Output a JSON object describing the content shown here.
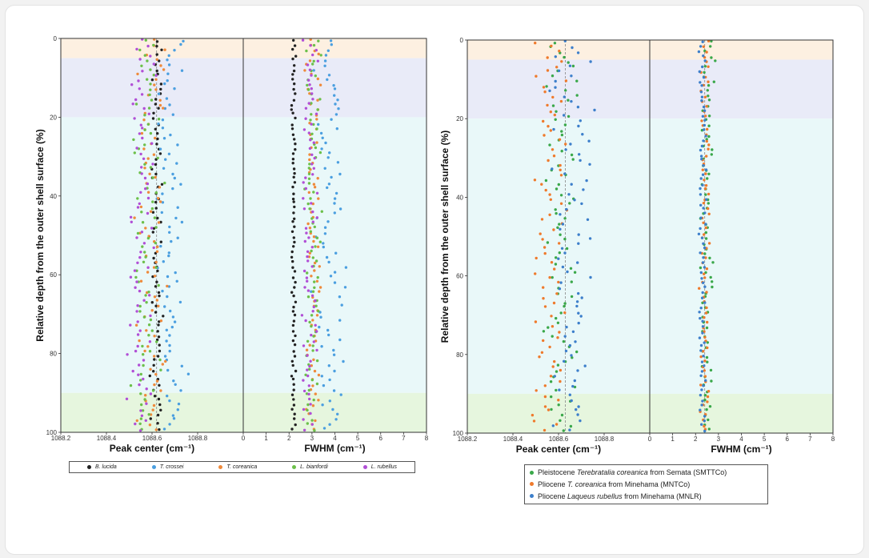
{
  "chart_data": [
    {
      "type": "scatter",
      "panel": "left",
      "ylabel": "Relative depth from the outer shell surface (%)",
      "ylim": [
        0,
        100
      ],
      "ytick_labels": [
        "0",
        "20",
        "40",
        "60",
        "80",
        "100"
      ],
      "depth_zones": [
        {
          "from": 0,
          "to": 5,
          "color": "#fdf0e1"
        },
        {
          "from": 5,
          "to": 20,
          "color": "#e9ebf8"
        },
        {
          "from": 20,
          "to": 90,
          "color": "#e9f8f9"
        },
        {
          "from": 90,
          "to": 100,
          "color": "#e6f6de"
        }
      ],
      "subplots": [
        {
          "xlabel": "Peak center (cm⁻¹)",
          "xlim": [
            1088.2,
            1089.0
          ],
          "xtick_labels": [
            "1088.2",
            "1088.4",
            "1088.6",
            "1088.8"
          ],
          "reference_line": 1088.62
        },
        {
          "xlabel": "FWHM (cm⁻¹)",
          "xlim": [
            0,
            8
          ],
          "xtick_labels": [
            "0",
            "1",
            "2",
            "3",
            "4",
            "5",
            "6",
            "7",
            "8"
          ]
        }
      ],
      "series": [
        {
          "name": "B. lucida",
          "color": "#222222",
          "peak_center": {
            "center": 1088.62,
            "spread": 0.025
          },
          "fwhm": {
            "center": 2.2,
            "spread": 0.08
          }
        },
        {
          "name": "T. crossei",
          "color": "#4b9fe0",
          "peak_center": {
            "center": 1088.68,
            "spread": 0.05
          },
          "fwhm": {
            "center": 3.8,
            "spread": 0.6
          }
        },
        {
          "name": "T. coreanica",
          "color": "#ef8a3b",
          "peak_center": {
            "center": 1088.6,
            "spread": 0.05
          },
          "fwhm": {
            "center": 3.0,
            "spread": 0.3
          }
        },
        {
          "name": "L. bianfordi",
          "color": "#6cc04a",
          "peak_center": {
            "center": 1088.58,
            "spread": 0.05
          },
          "fwhm": {
            "center": 3.0,
            "spread": 0.3
          }
        },
        {
          "name": "L. rubellus",
          "color": "#b14fd6",
          "peak_center": {
            "center": 1088.55,
            "spread": 0.05
          },
          "fwhm": {
            "center": 2.9,
            "spread": 0.3
          }
        }
      ]
    },
    {
      "type": "scatter",
      "panel": "right",
      "ylabel": "Relative depth from the outer shell surface (%)",
      "ylim": [
        0,
        100
      ],
      "ytick_labels": [
        "0",
        "20",
        "40",
        "60",
        "80",
        "100"
      ],
      "depth_zones": [
        {
          "from": 0,
          "to": 5,
          "color": "#fdf0e1"
        },
        {
          "from": 5,
          "to": 20,
          "color": "#e9ebf8"
        },
        {
          "from": 20,
          "to": 90,
          "color": "#e9f8f9"
        },
        {
          "from": 90,
          "to": 100,
          "color": "#e6f6de"
        }
      ],
      "subplots": [
        {
          "xlabel": "Peak center (cm⁻¹)",
          "xlim": [
            1088.2,
            1089.0
          ],
          "xtick_labels": [
            "1088.2",
            "1088.4",
            "1088.6",
            "1088.8"
          ],
          "reference_line": 1088.63
        },
        {
          "xlabel": "FWHM (cm⁻¹)",
          "xlim": [
            0,
            8
          ],
          "xtick_labels": [
            "0",
            "1",
            "2",
            "3",
            "4",
            "5",
            "6",
            "7",
            "8"
          ],
          "reference_line": 2.4
        }
      ],
      "series": [
        {
          "name": "SMTTCo",
          "color": "#3aa84a",
          "peak_center": {
            "center": 1088.61,
            "spread": 0.06
          },
          "fwhm": {
            "center": 2.5,
            "spread": 0.25
          }
        },
        {
          "name": "MNTCo",
          "color": "#ef7a2c",
          "peak_center": {
            "center": 1088.57,
            "spread": 0.07
          },
          "fwhm": {
            "center": 2.4,
            "spread": 0.2
          }
        },
        {
          "name": "MNLR",
          "color": "#3d7fcb",
          "peak_center": {
            "center": 1088.66,
            "spread": 0.07
          },
          "fwhm": {
            "center": 2.3,
            "spread": 0.15
          }
        }
      ]
    }
  ],
  "legend_left": [
    {
      "label": "B. lucida",
      "color": "#222222"
    },
    {
      "label": "T. crossei",
      "color": "#4b9fe0"
    },
    {
      "label": "T. coreanica",
      "color": "#ef8a3b"
    },
    {
      "label": "L. bianfordi",
      "color": "#6cc04a"
    },
    {
      "label": "L. rubellus",
      "color": "#b14fd6"
    }
  ],
  "legend_right": [
    {
      "pre": "Pleistocene ",
      "italic": "Terebratalia coreanica",
      "post": " from Semata (SMTTCo)",
      "color": "#3aa84a"
    },
    {
      "pre": "Pliocene ",
      "italic": "T. coreanica",
      "post": " from Minehama (MNTCo)",
      "color": "#ef7a2c"
    },
    {
      "pre": "Pliocene ",
      "italic": "Laqueus rubellus",
      "post": " from Minehama (MNLR)",
      "color": "#3d7fcb"
    }
  ]
}
